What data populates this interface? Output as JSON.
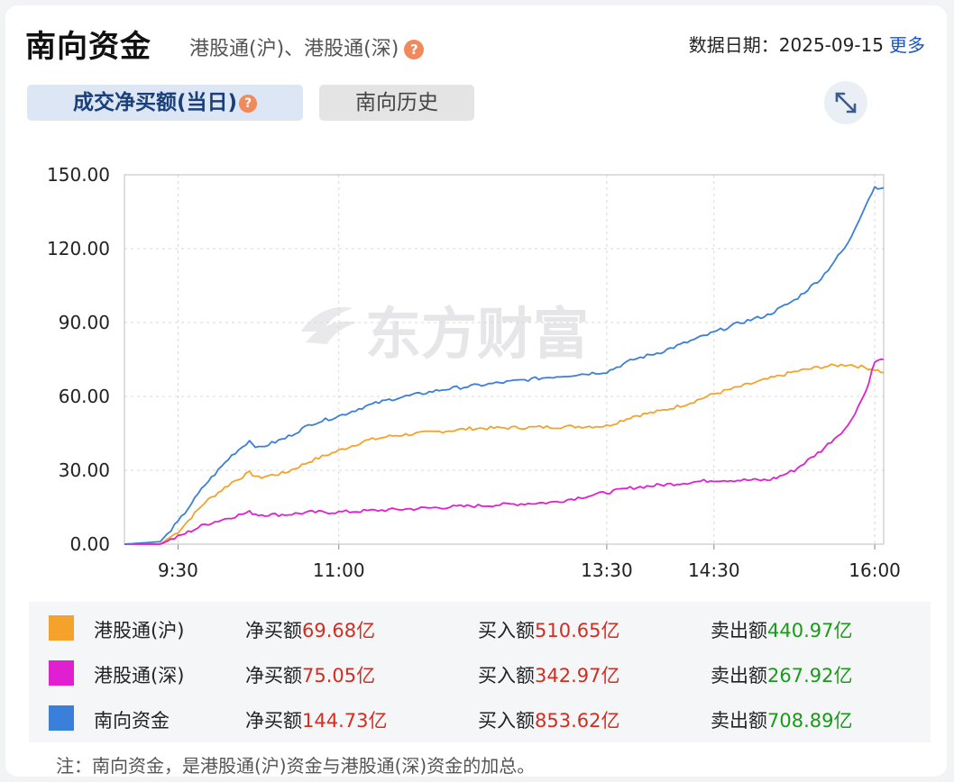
{
  "header": {
    "title": "南向资金",
    "subtitle": "港股通(沪)、港股通(深)",
    "help_glyph": "?",
    "date_label": "数据日期：2025-09-15",
    "more_label": "更多"
  },
  "tabs": [
    {
      "label": "成交净买额(当日)",
      "active": true
    },
    {
      "label": "南向历史",
      "active": false
    }
  ],
  "expand_icon": "expand-arrows-icon",
  "chart_data": {
    "type": "line",
    "x_ticks": [
      "9:30",
      "11:00",
      "13:30",
      "14:30",
      "16:00"
    ],
    "ylim": [
      0,
      150
    ],
    "y_ticks": [
      "150.00",
      "120.00",
      "90.00",
      "60.00",
      "30.00",
      "0.00"
    ],
    "grid": true,
    "watermark": "东方财富",
    "series": [
      {
        "name": "港股通(沪)",
        "color": "#f4a22b",
        "points": [
          [
            "9:00",
            0
          ],
          [
            "9:20",
            0
          ],
          [
            "9:30",
            5
          ],
          [
            "9:45",
            17
          ],
          [
            "10:00",
            25
          ],
          [
            "10:10",
            29
          ],
          [
            "10:15",
            27
          ],
          [
            "10:30",
            29
          ],
          [
            "10:45",
            34
          ],
          [
            "11:00",
            38
          ],
          [
            "11:15",
            42
          ],
          [
            "11:30",
            44
          ],
          [
            "11:45",
            45
          ],
          [
            "12:00",
            46
          ],
          [
            "12:15",
            47
          ],
          [
            "13:30",
            48
          ],
          [
            "13:45",
            52
          ],
          [
            "14:00",
            54
          ],
          [
            "14:15",
            57
          ],
          [
            "14:30",
            61
          ],
          [
            "14:45",
            64
          ],
          [
            "15:00",
            67
          ],
          [
            "15:15",
            70
          ],
          [
            "15:30",
            72
          ],
          [
            "15:45",
            73
          ],
          [
            "16:00",
            71
          ],
          [
            "16:05",
            69.7
          ]
        ]
      },
      {
        "name": "港股通(深)",
        "color": "#e020d0",
        "points": [
          [
            "9:00",
            0
          ],
          [
            "9:20",
            0
          ],
          [
            "9:30",
            3
          ],
          [
            "9:45",
            8
          ],
          [
            "10:00",
            11
          ],
          [
            "10:10",
            13
          ],
          [
            "10:15",
            12
          ],
          [
            "10:30",
            12
          ],
          [
            "10:45",
            13
          ],
          [
            "11:00",
            13
          ],
          [
            "11:30",
            14
          ],
          [
            "12:00",
            15
          ],
          [
            "13:00",
            17
          ],
          [
            "13:30",
            21
          ],
          [
            "13:45",
            23
          ],
          [
            "14:00",
            24
          ],
          [
            "14:15",
            25
          ],
          [
            "14:30",
            26
          ],
          [
            "14:45",
            26
          ],
          [
            "15:00",
            26
          ],
          [
            "15:05",
            27
          ],
          [
            "15:15",
            30
          ],
          [
            "15:30",
            38
          ],
          [
            "15:45",
            48
          ],
          [
            "15:55",
            62
          ],
          [
            "16:00",
            74
          ],
          [
            "16:05",
            75.05
          ]
        ]
      },
      {
        "name": "南向资金",
        "color": "#3a7fd9",
        "points": [
          [
            "9:00",
            0
          ],
          [
            "9:20",
            1
          ],
          [
            "9:30",
            9
          ],
          [
            "9:45",
            24
          ],
          [
            "10:00",
            36
          ],
          [
            "10:10",
            42
          ],
          [
            "10:15",
            39
          ],
          [
            "10:30",
            43
          ],
          [
            "10:45",
            49
          ],
          [
            "11:00",
            52
          ],
          [
            "11:15",
            56
          ],
          [
            "11:30",
            59
          ],
          [
            "11:45",
            61
          ],
          [
            "12:00",
            63
          ],
          [
            "13:00",
            68
          ],
          [
            "13:30",
            70
          ],
          [
            "13:45",
            75
          ],
          [
            "14:00",
            78
          ],
          [
            "14:15",
            82
          ],
          [
            "14:30",
            86
          ],
          [
            "14:45",
            90
          ],
          [
            "15:00",
            93
          ],
          [
            "15:15",
            99
          ],
          [
            "15:30",
            108
          ],
          [
            "15:45",
            122
          ],
          [
            "15:55",
            138
          ],
          [
            "16:00",
            145
          ],
          [
            "16:05",
            144.73
          ]
        ]
      }
    ]
  },
  "legend": [
    {
      "name": "港股通(沪)",
      "color": "#f4a22b",
      "net_label": "净买额",
      "net_value": "69.68亿",
      "buy_label": "买入额",
      "buy_value": "510.65亿",
      "sell_label": "卖出额",
      "sell_value": "440.97亿"
    },
    {
      "name": "港股通(深)",
      "color": "#e020d0",
      "net_label": "净买额",
      "net_value": "75.05亿",
      "buy_label": "买入额",
      "buy_value": "342.97亿",
      "sell_label": "卖出额",
      "sell_value": "267.92亿"
    },
    {
      "name": "南向资金",
      "color": "#3a7fd9",
      "net_label": "净买额",
      "net_value": "144.73亿",
      "buy_label": "买入额",
      "buy_value": "853.62亿",
      "sell_label": "卖出额",
      "sell_value": "708.89亿"
    }
  ],
  "note": "注：南向资金，是港股通(沪)资金与港股通(深)资金的加总。"
}
